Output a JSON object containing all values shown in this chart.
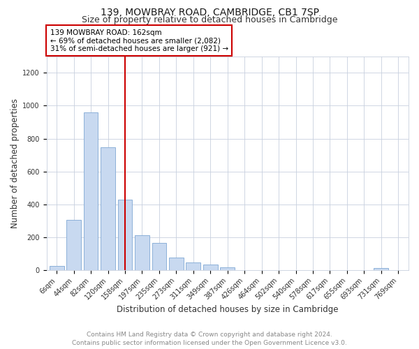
{
  "title": "139, MOWBRAY ROAD, CAMBRIDGE, CB1 7SP",
  "subtitle": "Size of property relative to detached houses in Cambridge",
  "xlabel": "Distribution of detached houses by size in Cambridge",
  "ylabel": "Number of detached properties",
  "bin_labels": [
    "6sqm",
    "44sqm",
    "82sqm",
    "120sqm",
    "158sqm",
    "197sqm",
    "235sqm",
    "273sqm",
    "311sqm",
    "349sqm",
    "387sqm",
    "426sqm",
    "464sqm",
    "502sqm",
    "540sqm",
    "578sqm",
    "617sqm",
    "655sqm",
    "693sqm",
    "731sqm",
    "769sqm"
  ],
  "bar_values": [
    25,
    305,
    960,
    745,
    430,
    210,
    165,
    75,
    48,
    33,
    18,
    0,
    0,
    0,
    0,
    0,
    0,
    0,
    0,
    10,
    0
  ],
  "bar_color": "#c8d9f0",
  "bar_edge_color": "#7fa8d4",
  "red_line_x": 4.5,
  "annotation_line1": "139 MOWBRAY ROAD: 162sqm",
  "annotation_line2": "← 69% of detached houses are smaller (2,082)",
  "annotation_line3": "31% of semi-detached houses are larger (921) →",
  "annotation_box_color": "#cc0000",
  "ylim": [
    0,
    1300
  ],
  "yticks": [
    0,
    200,
    400,
    600,
    800,
    1000,
    1200
  ],
  "footer_line1": "Contains HM Land Registry data © Crown copyright and database right 2024.",
  "footer_line2": "Contains public sector information licensed under the Open Government Licence v3.0.",
  "bg_color": "#ffffff",
  "grid_color": "#c8d0de",
  "title_fontsize": 10,
  "subtitle_fontsize": 9,
  "axis_label_fontsize": 8.5,
  "tick_fontsize": 7,
  "footer_fontsize": 6.5,
  "annot_fontsize": 7.5
}
